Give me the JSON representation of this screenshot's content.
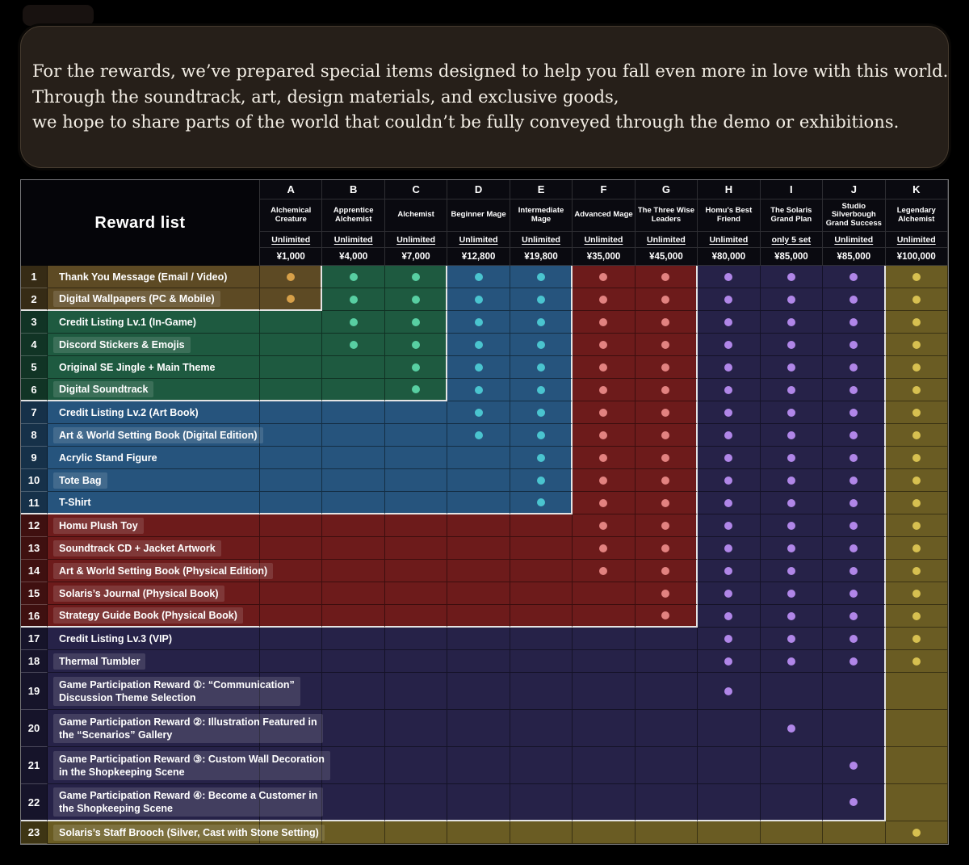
{
  "bubble": {
    "lines": [
      "For the rewards, we’ve prepared special items designed to help you fall even more in love with this world.",
      "Through the soundtrack, art, design materials, and exclusive goods,",
      "we hope to share parts of the world that couldn’t be fully conveyed through the demo or exhibitions."
    ]
  },
  "chart_data": {
    "type": "table",
    "title": "Reward list",
    "tiers": [
      {
        "letter": "A",
        "name": "Alchemical Creature",
        "availability": "Unlimited",
        "price": "¥1,000",
        "group": "brown"
      },
      {
        "letter": "B",
        "name": "Apprentice Alchemist",
        "availability": "Unlimited",
        "price": "¥4,000",
        "group": "green"
      },
      {
        "letter": "C",
        "name": "Alchemist",
        "availability": "Unlimited",
        "price": "¥7,000",
        "group": "green"
      },
      {
        "letter": "D",
        "name": "Beginner Mage",
        "availability": "Unlimited",
        "price": "¥12,800",
        "group": "blue"
      },
      {
        "letter": "E",
        "name": "Intermediate Mage",
        "availability": "Unlimited",
        "price": "¥19,800",
        "group": "blue"
      },
      {
        "letter": "F",
        "name": "Advanced Mage",
        "availability": "Unlimited",
        "price": "¥35,000",
        "group": "red"
      },
      {
        "letter": "G",
        "name": "The Three Wise Leaders",
        "availability": "Unlimited",
        "price": "¥45,000",
        "group": "red"
      },
      {
        "letter": "H",
        "name": "Homu's Best Friend",
        "availability": "Unlimited",
        "price": "¥80,000",
        "group": "navy"
      },
      {
        "letter": "I",
        "name": "The Solaris Grand Plan",
        "availability": "only 5 set",
        "price": "¥85,000",
        "group": "navy"
      },
      {
        "letter": "J",
        "name": "Studio Silverbough Grand Success",
        "availability": "Unlimited",
        "price": "¥85,000",
        "group": "navy"
      },
      {
        "letter": "K",
        "name": "Legendary Alchemist",
        "availability": "Unlimited",
        "price": "¥100,000",
        "group": "gold"
      }
    ],
    "rewards": [
      {
        "num": 1,
        "name": "Thank You Message (Email / Video)",
        "hl": false,
        "dots": [
          "A",
          "B",
          "C",
          "D",
          "E",
          "F",
          "G",
          "H",
          "I",
          "J",
          "K"
        ]
      },
      {
        "num": 2,
        "name": "Digital Wallpapers (PC & Mobile)",
        "hl": true,
        "dots": [
          "A",
          "B",
          "C",
          "D",
          "E",
          "F",
          "G",
          "H",
          "I",
          "J",
          "K"
        ]
      },
      {
        "num": 3,
        "name": "Credit Listing Lv.1 (In-Game)",
        "hl": false,
        "dots": [
          "B",
          "C",
          "D",
          "E",
          "F",
          "G",
          "H",
          "I",
          "J",
          "K"
        ]
      },
      {
        "num": 4,
        "name": "Discord Stickers & Emojis",
        "hl": true,
        "dots": [
          "B",
          "C",
          "D",
          "E",
          "F",
          "G",
          "H",
          "I",
          "J",
          "K"
        ]
      },
      {
        "num": 5,
        "name": "Original SE Jingle + Main Theme",
        "hl": false,
        "dots": [
          "C",
          "D",
          "E",
          "F",
          "G",
          "H",
          "I",
          "J",
          "K"
        ]
      },
      {
        "num": 6,
        "name": "Digital Soundtrack",
        "hl": true,
        "dots": [
          "C",
          "D",
          "E",
          "F",
          "G",
          "H",
          "I",
          "J",
          "K"
        ]
      },
      {
        "num": 7,
        "name": "Credit Listing Lv.2 (Art Book)",
        "hl": false,
        "dots": [
          "D",
          "E",
          "F",
          "G",
          "H",
          "I",
          "J",
          "K"
        ]
      },
      {
        "num": 8,
        "name": "Art & World Setting Book (Digital Edition)",
        "hl": true,
        "dots": [
          "D",
          "E",
          "F",
          "G",
          "H",
          "I",
          "J",
          "K"
        ]
      },
      {
        "num": 9,
        "name": "Acrylic Stand Figure",
        "hl": false,
        "dots": [
          "E",
          "F",
          "G",
          "H",
          "I",
          "J",
          "K"
        ]
      },
      {
        "num": 10,
        "name": "Tote Bag",
        "hl": true,
        "dots": [
          "E",
          "F",
          "G",
          "H",
          "I",
          "J",
          "K"
        ]
      },
      {
        "num": 11,
        "name": "T-Shirt",
        "hl": false,
        "dots": [
          "E",
          "F",
          "G",
          "H",
          "I",
          "J",
          "K"
        ]
      },
      {
        "num": 12,
        "name": "Homu Plush Toy",
        "hl": true,
        "dots": [
          "F",
          "G",
          "H",
          "I",
          "J",
          "K"
        ]
      },
      {
        "num": 13,
        "name": "Soundtrack CD + Jacket Artwork",
        "hl": true,
        "dots": [
          "F",
          "G",
          "H",
          "I",
          "J",
          "K"
        ]
      },
      {
        "num": 14,
        "name": "Art & World Setting Book (Physical Edition)",
        "hl": true,
        "dots": [
          "F",
          "G",
          "H",
          "I",
          "J",
          "K"
        ]
      },
      {
        "num": 15,
        "name": "Solaris’s Journal (Physical Book)",
        "hl": true,
        "dots": [
          "G",
          "H",
          "I",
          "J",
          "K"
        ]
      },
      {
        "num": 16,
        "name": "Strategy Guide Book (Physical Book)",
        "hl": true,
        "dots": [
          "G",
          "H",
          "I",
          "J",
          "K"
        ]
      },
      {
        "num": 17,
        "name": "Credit Listing Lv.3 (VIP)",
        "hl": false,
        "dots": [
          "H",
          "I",
          "J",
          "K"
        ]
      },
      {
        "num": 18,
        "name": "Thermal Tumbler",
        "hl": true,
        "dots": [
          "H",
          "I",
          "J",
          "K"
        ]
      },
      {
        "num": 19,
        "name": "Game Participation Reward ①: “Communication”",
        "name2": "Discussion Theme Selection",
        "hl": true,
        "dots": [
          "H"
        ]
      },
      {
        "num": 20,
        "name": "Game Participation Reward ②: Illustration Featured in",
        "name2": "the “Scenarios” Gallery",
        "hl": true,
        "dots": [
          "I"
        ]
      },
      {
        "num": 21,
        "name": "Game Participation Reward ③: Custom Wall Decoration",
        "name2": "in the Shopkeeping Scene",
        "hl": true,
        "dots": [
          "J"
        ]
      },
      {
        "num": 22,
        "name": "Game Participation Reward ④: Become a Customer in",
        "name2": "the Shopkeeping Scene",
        "hl": true,
        "dots": [
          "J"
        ]
      },
      {
        "num": 23,
        "name": "Solaris’s Staff Brooch (Silver, Cast with Stone Setting)",
        "hl": true,
        "dots": [
          "K"
        ]
      }
    ],
    "regions": {
      "order": [
        "brown",
        "green",
        "blue",
        "red",
        "navy",
        "gold"
      ],
      "last_row": {
        "brown": 2,
        "green": 6,
        "blue": 11,
        "red": 16,
        "navy": 22,
        "gold": 23
      },
      "bg": {
        "brown": "#5d4a24",
        "green": "#1e5a40",
        "blue": "#26547d",
        "red": "#6d1b1b",
        "navy": "#262248",
        "gold": "#6a5c23"
      },
      "dot": {
        "brown": "#d7a049",
        "green": "#58cfa2",
        "blue": "#4ac4cf",
        "red": "#e28280",
        "navy": "#b086e8",
        "gold": "#d7c050"
      }
    }
  }
}
